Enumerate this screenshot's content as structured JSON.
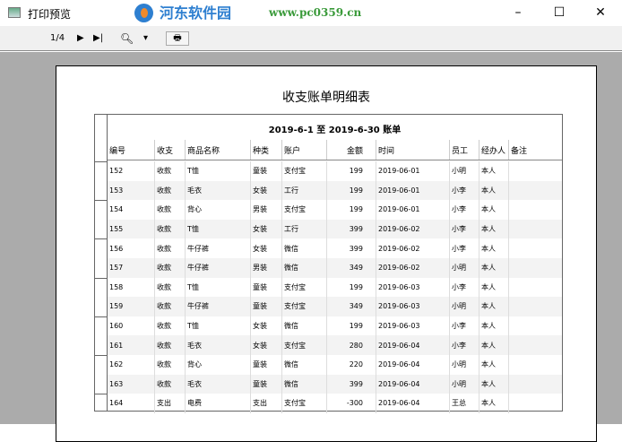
{
  "window": {
    "title": "打印预览",
    "minimize": "–",
    "maximize": "☐",
    "close": "✕"
  },
  "toolbar": {
    "page_indicator": "1/4",
    "next": "▶",
    "last": "▶|",
    "zoom_dropdown": "▾",
    "print": "🖶"
  },
  "watermark": {
    "name": "河东软件园",
    "url": "www.pc0359.cn"
  },
  "document": {
    "title": "收支账单明细表",
    "report_title": "2019-6-1 至 2019-6-30 账单",
    "columns": [
      "编号",
      "收支",
      "商品名称",
      "种类",
      "账户",
      "金额",
      "时间",
      "员工",
      "经办人",
      "备注"
    ],
    "rows": [
      [
        "152",
        "收款",
        "T恤",
        "童装",
        "支付宝",
        "199",
        "2019-06-01",
        "小明",
        "本人",
        ""
      ],
      [
        "153",
        "收款",
        "毛衣",
        "女装",
        "工行",
        "199",
        "2019-06-01",
        "小李",
        "本人",
        ""
      ],
      [
        "154",
        "收款",
        "背心",
        "男装",
        "支付宝",
        "199",
        "2019-06-01",
        "小李",
        "本人",
        ""
      ],
      [
        "155",
        "收款",
        "T恤",
        "女装",
        "工行",
        "399",
        "2019-06-02",
        "小李",
        "本人",
        ""
      ],
      [
        "156",
        "收款",
        "牛仔裤",
        "女装",
        "微信",
        "399",
        "2019-06-02",
        "小李",
        "本人",
        ""
      ],
      [
        "157",
        "收款",
        "牛仔裤",
        "男装",
        "微信",
        "349",
        "2019-06-02",
        "小明",
        "本人",
        ""
      ],
      [
        "158",
        "收款",
        "T恤",
        "童装",
        "支付宝",
        "199",
        "2019-06-03",
        "小李",
        "本人",
        ""
      ],
      [
        "159",
        "收款",
        "牛仔裤",
        "童装",
        "支付宝",
        "349",
        "2019-06-03",
        "小明",
        "本人",
        ""
      ],
      [
        "160",
        "收款",
        "T恤",
        "女装",
        "微信",
        "199",
        "2019-06-03",
        "小李",
        "本人",
        ""
      ],
      [
        "161",
        "收款",
        "毛衣",
        "女装",
        "支付宝",
        "280",
        "2019-06-04",
        "小李",
        "本人",
        ""
      ],
      [
        "162",
        "收款",
        "背心",
        "童装",
        "微信",
        "220",
        "2019-06-04",
        "小明",
        "本人",
        ""
      ],
      [
        "163",
        "收款",
        "毛衣",
        "童装",
        "微信",
        "399",
        "2019-06-04",
        "小明",
        "本人",
        ""
      ],
      [
        "164",
        "支出",
        "电费",
        "支出",
        "支付宝",
        "-300",
        "2019-06-04",
        "王总",
        "本人",
        ""
      ]
    ]
  }
}
